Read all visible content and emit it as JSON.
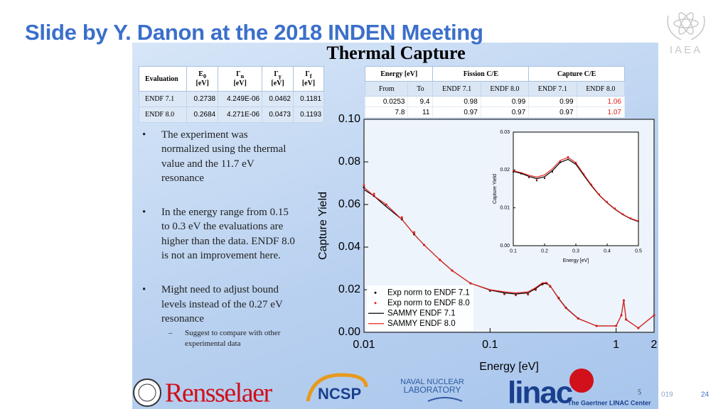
{
  "slide": {
    "title": "Slide by Y. Danon at the 2018 INDEN Meeting",
    "heading": "Thermal Capture",
    "logo_text": "IAEA",
    "bullets": [
      {
        "text": "The experiment was normalized using the thermal value and the 11.7 eV resonance"
      },
      {
        "text": "In the energy range from 0.15 to 0.3 eV the evaluations are higher than the data. ENDF 8.0 is not an improvement here."
      },
      {
        "text": "Might need to adjust bound levels instead of the 0.27 eV resonance",
        "sub": [
          "Suggest to compare with other experimental data"
        ]
      }
    ],
    "footer": {
      "logos": [
        "Rensselaer",
        "NCSP",
        "NAVAL NUCLEAR",
        "LABORATORY",
        "linac",
        "The Gaertner LINAC Center"
      ],
      "slide_number": "5",
      "date_fragment": "019",
      "page_number": "24"
    }
  },
  "tables": [
    {
      "header": [
        {
          "text": "Evaluation"
        },
        {
          "symbol": "E",
          "sub": "0",
          "unit": "[eV]"
        },
        {
          "symbol": "Γ",
          "sub": "n",
          "unit": "[eV]"
        },
        {
          "symbol": "Γ",
          "sub": "γ",
          "unit": "[eV]"
        },
        {
          "symbol": "Γ",
          "sub": "f",
          "unit": "[eV]"
        }
      ],
      "rows": [
        [
          "ENDF 7.1",
          0.2738,
          "4.249E-06",
          0.0462,
          0.1181
        ],
        [
          "ENDF 8.0",
          0.2684,
          "4.271E-06",
          0.0473,
          0.1193
        ]
      ]
    },
    {
      "groups": [
        "Energy [eV]",
        "Fission C/E",
        "Capture C/E"
      ],
      "subheader": [
        "From",
        "To",
        "ENDF 7.1",
        "ENDF 8.0",
        "ENDF 7.1",
        "ENDF 8.0"
      ],
      "rows": [
        [
          0.0253,
          9.4,
          0.98,
          0.99,
          0.99,
          1.06
        ],
        [
          7.8,
          11,
          0.97,
          0.97,
          0.97,
          1.07
        ]
      ]
    }
  ],
  "chart_data": [
    {
      "type": "line",
      "ylabel": "Capture Yield",
      "xlabel": "Energy [eV]",
      "xscale": "log",
      "xlim": [
        0.01,
        2
      ],
      "ylim": [
        0,
        0.1
      ],
      "xticks": [
        0.01,
        0.1,
        1,
        2
      ],
      "yticks": [
        {
          "value": 0,
          "label": "0.00"
        },
        0.02,
        0.04,
        0.06,
        0.08,
        {
          "value": 0.1,
          "label": "0.10"
        }
      ],
      "legend": "lower left",
      "x": [
        0.01,
        0.012,
        0.015,
        0.02,
        0.025,
        0.03,
        0.04,
        0.05,
        0.07,
        0.1,
        0.13,
        0.16,
        0.2,
        0.23,
        0.26,
        0.28,
        0.3,
        0.35,
        0.4,
        0.5,
        0.7,
        1,
        1.1,
        1.15,
        1.2,
        1.5,
        2
      ],
      "series": [
        {
          "name": "Exp norm to ENDF 7.1",
          "color": "#000000",
          "mode": "markers",
          "values": [
            0.068,
            0.064,
            0.06,
            0.053,
            0.046,
            0.041,
            0.034,
            0.029,
            0.023,
            0.0195,
            0.018,
            0.0175,
            0.0178,
            0.02,
            0.0225,
            0.023,
            0.0215,
            0.016,
            0.0115,
            0.0065,
            0.003,
            0.003,
            0.008,
            0.015,
            0.006,
            0.002,
            0.008
          ]
        },
        {
          "name": "Exp norm to ENDF 8.0",
          "color": "#e8231f",
          "mode": "markers",
          "values": [
            0.069,
            0.065,
            0.06,
            0.054,
            0.047,
            0.041,
            0.034,
            0.029,
            0.023,
            0.0197,
            0.0182,
            0.0176,
            0.0179,
            0.0202,
            0.0227,
            0.0232,
            0.0217,
            0.0162,
            0.0116,
            0.0066,
            0.003,
            0.003,
            0.008,
            0.015,
            0.006,
            0.002,
            0.008
          ]
        },
        {
          "name": "SAMMY ENDF 7.1",
          "color": "#000000",
          "mode": "line",
          "values": [
            0.067,
            0.064,
            0.059,
            0.053,
            0.046,
            0.041,
            0.034,
            0.029,
            0.023,
            0.0198,
            0.0185,
            0.018,
            0.0185,
            0.0205,
            0.0228,
            0.023,
            0.0218,
            0.016,
            0.0115,
            0.0065,
            0.003,
            0.003,
            0.008,
            0.015,
            0.006,
            0.002,
            0.008
          ]
        },
        {
          "name": "SAMMY ENDF 8.0",
          "color": "#e8231f",
          "mode": "line",
          "values": [
            0.068,
            0.064,
            0.06,
            0.053,
            0.046,
            0.041,
            0.034,
            0.029,
            0.023,
            0.02,
            0.019,
            0.0185,
            0.019,
            0.021,
            0.0232,
            0.0233,
            0.0218,
            0.0158,
            0.0113,
            0.0064,
            0.003,
            0.003,
            0.008,
            0.015,
            0.006,
            0.002,
            0.008
          ]
        }
      ]
    },
    {
      "type": "line",
      "ylabel": "Capture Yield",
      "xlabel": "Energy [eV]",
      "xscale": "linear",
      "xlim": [
        0.1,
        0.5
      ],
      "ylim": [
        0,
        0.03
      ],
      "xticks": [
        0.1,
        0.2,
        0.3,
        0.4,
        0.5
      ],
      "yticks": [
        {
          "value": 0,
          "label": "0.00"
        },
        0.01,
        0.02,
        0.03
      ],
      "x": [
        0.1,
        0.125,
        0.15,
        0.175,
        0.2,
        0.225,
        0.25,
        0.275,
        0.3,
        0.325,
        0.35,
        0.375,
        0.4,
        0.425,
        0.45,
        0.475,
        0.5
      ],
      "series": [
        {
          "color": "#000000",
          "mode": "markers",
          "values": [
            0.0195,
            0.019,
            0.018,
            0.0172,
            0.0178,
            0.0195,
            0.022,
            0.0232,
            0.0218,
            0.0188,
            0.016,
            0.0135,
            0.0115,
            0.0098,
            0.0083,
            0.0072,
            0.0065
          ]
        },
        {
          "color": "#e8231f",
          "mode": "markers",
          "values": [
            0.0197,
            0.0192,
            0.0181,
            0.0174,
            0.018,
            0.0197,
            0.0223,
            0.0235,
            0.022,
            0.019,
            0.0162,
            0.0136,
            0.0116,
            0.0099,
            0.0084,
            0.0073,
            0.0066
          ]
        },
        {
          "color": "#000000",
          "mode": "line",
          "values": [
            0.0196,
            0.0191,
            0.0183,
            0.0177,
            0.0182,
            0.0198,
            0.022,
            0.0228,
            0.0215,
            0.0186,
            0.0158,
            0.0133,
            0.0113,
            0.0096,
            0.0082,
            0.0071,
            0.0064
          ]
        },
        {
          "color": "#e8231f",
          "mode": "line",
          "values": [
            0.0198,
            0.0193,
            0.0186,
            0.0181,
            0.0187,
            0.0203,
            0.0225,
            0.0233,
            0.0219,
            0.0189,
            0.016,
            0.0134,
            0.0114,
            0.0097,
            0.0083,
            0.0072,
            0.0065
          ]
        }
      ]
    }
  ]
}
